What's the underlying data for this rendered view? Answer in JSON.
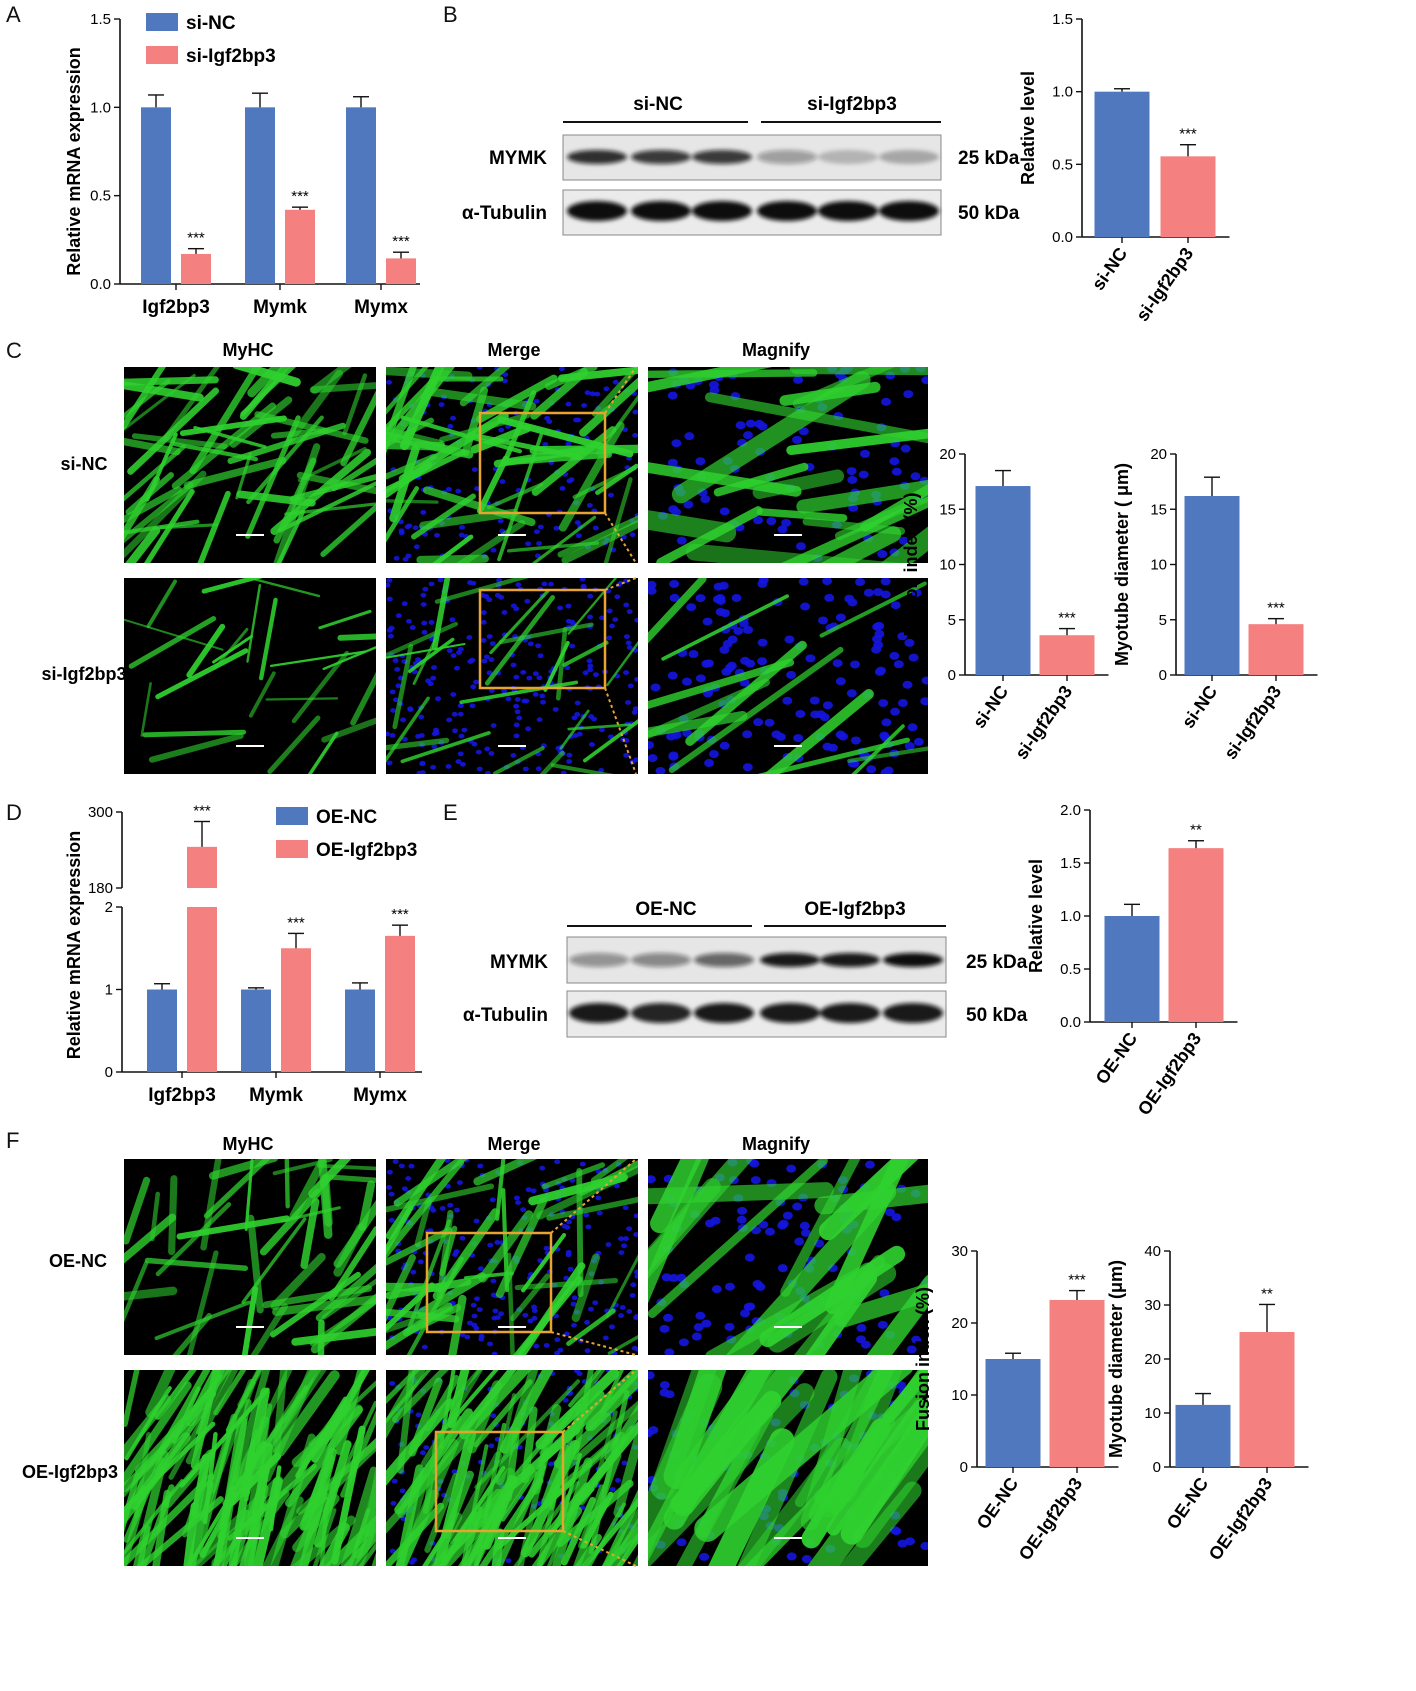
{
  "panel_letters": [
    "A",
    "B",
    "C",
    "D",
    "E",
    "F"
  ],
  "colors": {
    "control": "#4f78bf",
    "treatment": "#f48080",
    "myhc_green": "#2fd12f",
    "nuclei_blue": "#1515e0",
    "frame_orange": "#e8a431"
  },
  "blot_B": {
    "groups": [
      "si-NC",
      "si-Igf2bp3"
    ],
    "rows": [
      {
        "protein": "MYMK",
        "size": "25 kDa"
      },
      {
        "protein": "α-Tubulin",
        "size": "50 kDa"
      }
    ]
  },
  "blot_E": {
    "groups": [
      "OE-NC",
      "OE-Igf2bp3"
    ],
    "rows": [
      {
        "protein": "MYMK",
        "size": "25 kDa"
      },
      {
        "protein": "α-Tubulin",
        "size": "50 kDa"
      }
    ]
  },
  "micro_C": {
    "cols": [
      "MyHC",
      "Merge",
      "Magnify"
    ],
    "rows": [
      "si-NC",
      "si-Igf2bp3"
    ]
  },
  "micro_F": {
    "cols": [
      "MyHC",
      "Merge",
      "Magnify"
    ],
    "rows": [
      "OE-NC",
      "OE-Igf2bp3"
    ]
  },
  "chart_data": [
    {
      "panel": "A",
      "type": "bar",
      "categories": [
        "Igf2bp3",
        "Mymk",
        "Mymx"
      ],
      "series": [
        {
          "name": "si-NC",
          "values": [
            1.0,
            1.0,
            1.0
          ],
          "errors": [
            0.07,
            0.08,
            0.06
          ]
        },
        {
          "name": "si-Igf2bp3",
          "values": [
            0.17,
            0.42,
            0.145
          ],
          "errors": [
            0.03,
            0.015,
            0.035
          ]
        }
      ],
      "annotations": [
        "***",
        "***",
        "***"
      ],
      "ylabel": "Relative mRNA expression",
      "ylim": [
        0,
        1.5
      ],
      "yticks": [
        "0.0",
        "0.5",
        "1.0",
        "1.5"
      ]
    },
    {
      "panel": "B",
      "type": "bar",
      "categories": [
        "si-NC",
        "si-Igf2bp3"
      ],
      "values": [
        1.0,
        0.555
      ],
      "errors": [
        0.02,
        0.08
      ],
      "annotations": [
        "",
        "***"
      ],
      "ylabel": "Relative level",
      "ylim": [
        0,
        1.5
      ],
      "yticks": [
        "0.0",
        "0.5",
        "1.0",
        "1.5"
      ]
    },
    {
      "panel": "C1",
      "type": "bar",
      "categories": [
        "si-NC",
        "si-Igf2bp3"
      ],
      "values": [
        17.1,
        3.6
      ],
      "errors": [
        1.4,
        0.6
      ],
      "annotations": [
        "",
        "***"
      ],
      "ylabel": "Fusion index (%)",
      "ylim": [
        0,
        20
      ],
      "yticks": [
        "0",
        "5",
        "10",
        "15",
        "20"
      ]
    },
    {
      "panel": "C2",
      "type": "bar",
      "categories": [
        "si-NC",
        "si-Igf2bp3"
      ],
      "values": [
        16.2,
        4.6
      ],
      "errors": [
        1.7,
        0.5
      ],
      "annotations": [
        "",
        "***"
      ],
      "ylabel": "Myotube diameter ( μm)",
      "ylim": [
        0,
        20
      ],
      "yticks": [
        "0",
        "5",
        "10",
        "15",
        "20"
      ]
    },
    {
      "panel": "D",
      "type": "bar",
      "categories": [
        "Igf2bp3",
        "Mymk",
        "Mymx"
      ],
      "series": [
        {
          "name": "OE-NC",
          "values": [
            1.0,
            1.0,
            1.0
          ],
          "errors": [
            0.07,
            0.02,
            0.08
          ]
        },
        {
          "name": "OE-Igf2bp3",
          "values": [
            245,
            1.5,
            1.65
          ],
          "errors": [
            40,
            0.18,
            0.13
          ]
        }
      ],
      "annotations": [
        "***",
        "***",
        "***"
      ],
      "ylabel": "Relative mRNA expression",
      "ylim": [
        0,
        300
      ],
      "axis_break": [
        2,
        180
      ],
      "yticks": [
        "0",
        "1",
        "2",
        "180",
        "300"
      ]
    },
    {
      "panel": "E",
      "type": "bar",
      "categories": [
        "OE-NC",
        "OE-Igf2bp3"
      ],
      "values": [
        1.0,
        1.64
      ],
      "errors": [
        0.11,
        0.07
      ],
      "annotations": [
        "",
        "**"
      ],
      "ylabel": "Relative level",
      "ylim": [
        0,
        2.0
      ],
      "yticks": [
        "0.0",
        "0.5",
        "1.0",
        "1.5",
        "2.0"
      ]
    },
    {
      "panel": "F1",
      "type": "bar",
      "categories": [
        "OE-NC",
        "OE-Igf2bp3"
      ],
      "values": [
        15.0,
        23.2
      ],
      "errors": [
        0.8,
        1.3
      ],
      "annotations": [
        "",
        "***"
      ],
      "ylabel": "Fusion index (%)",
      "ylim": [
        0,
        30
      ],
      "yticks": [
        "0",
        "10",
        "20",
        "30"
      ]
    },
    {
      "panel": "F2",
      "type": "bar",
      "categories": [
        "OE-NC",
        "OE-Igf2bp3"
      ],
      "values": [
        11.5,
        25.0
      ],
      "errors": [
        2.1,
        5.1
      ],
      "annotations": [
        "",
        "**"
      ],
      "ylabel": "Myotube diameter (μm)",
      "ylim": [
        0,
        40
      ],
      "yticks": [
        "0",
        "10",
        "20",
        "30",
        "40"
      ]
    }
  ]
}
